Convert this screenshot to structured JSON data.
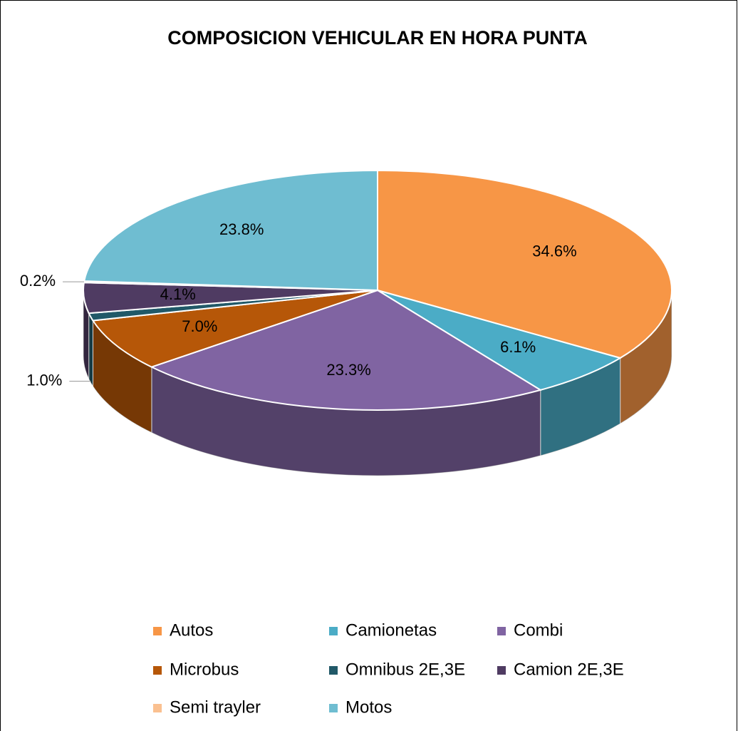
{
  "chart_data": {
    "type": "pie",
    "title": "COMPOSICION VEHICULAR EN HORA PUNTA",
    "categories": [
      "Autos",
      "Camionetas",
      "Combi",
      "Microbus",
      "Omnibus 2E,3E",
      "Camion 2E,3E",
      "Semi trayler",
      "Motos"
    ],
    "values": [
      34.6,
      6.1,
      23.3,
      7.0,
      1.0,
      4.1,
      0.2,
      23.8
    ],
    "value_labels": [
      "34.6%",
      "6.1%",
      "23.3%",
      "7.0%",
      "1.0%",
      "4.1%",
      "0.2%",
      "23.8%"
    ],
    "colors": [
      "#f79646",
      "#4bacc6",
      "#8064a2",
      "#b65708",
      "#215968",
      "#4f3b62",
      "#fac090",
      "#6fbdd1"
    ],
    "legend": "bottom"
  }
}
